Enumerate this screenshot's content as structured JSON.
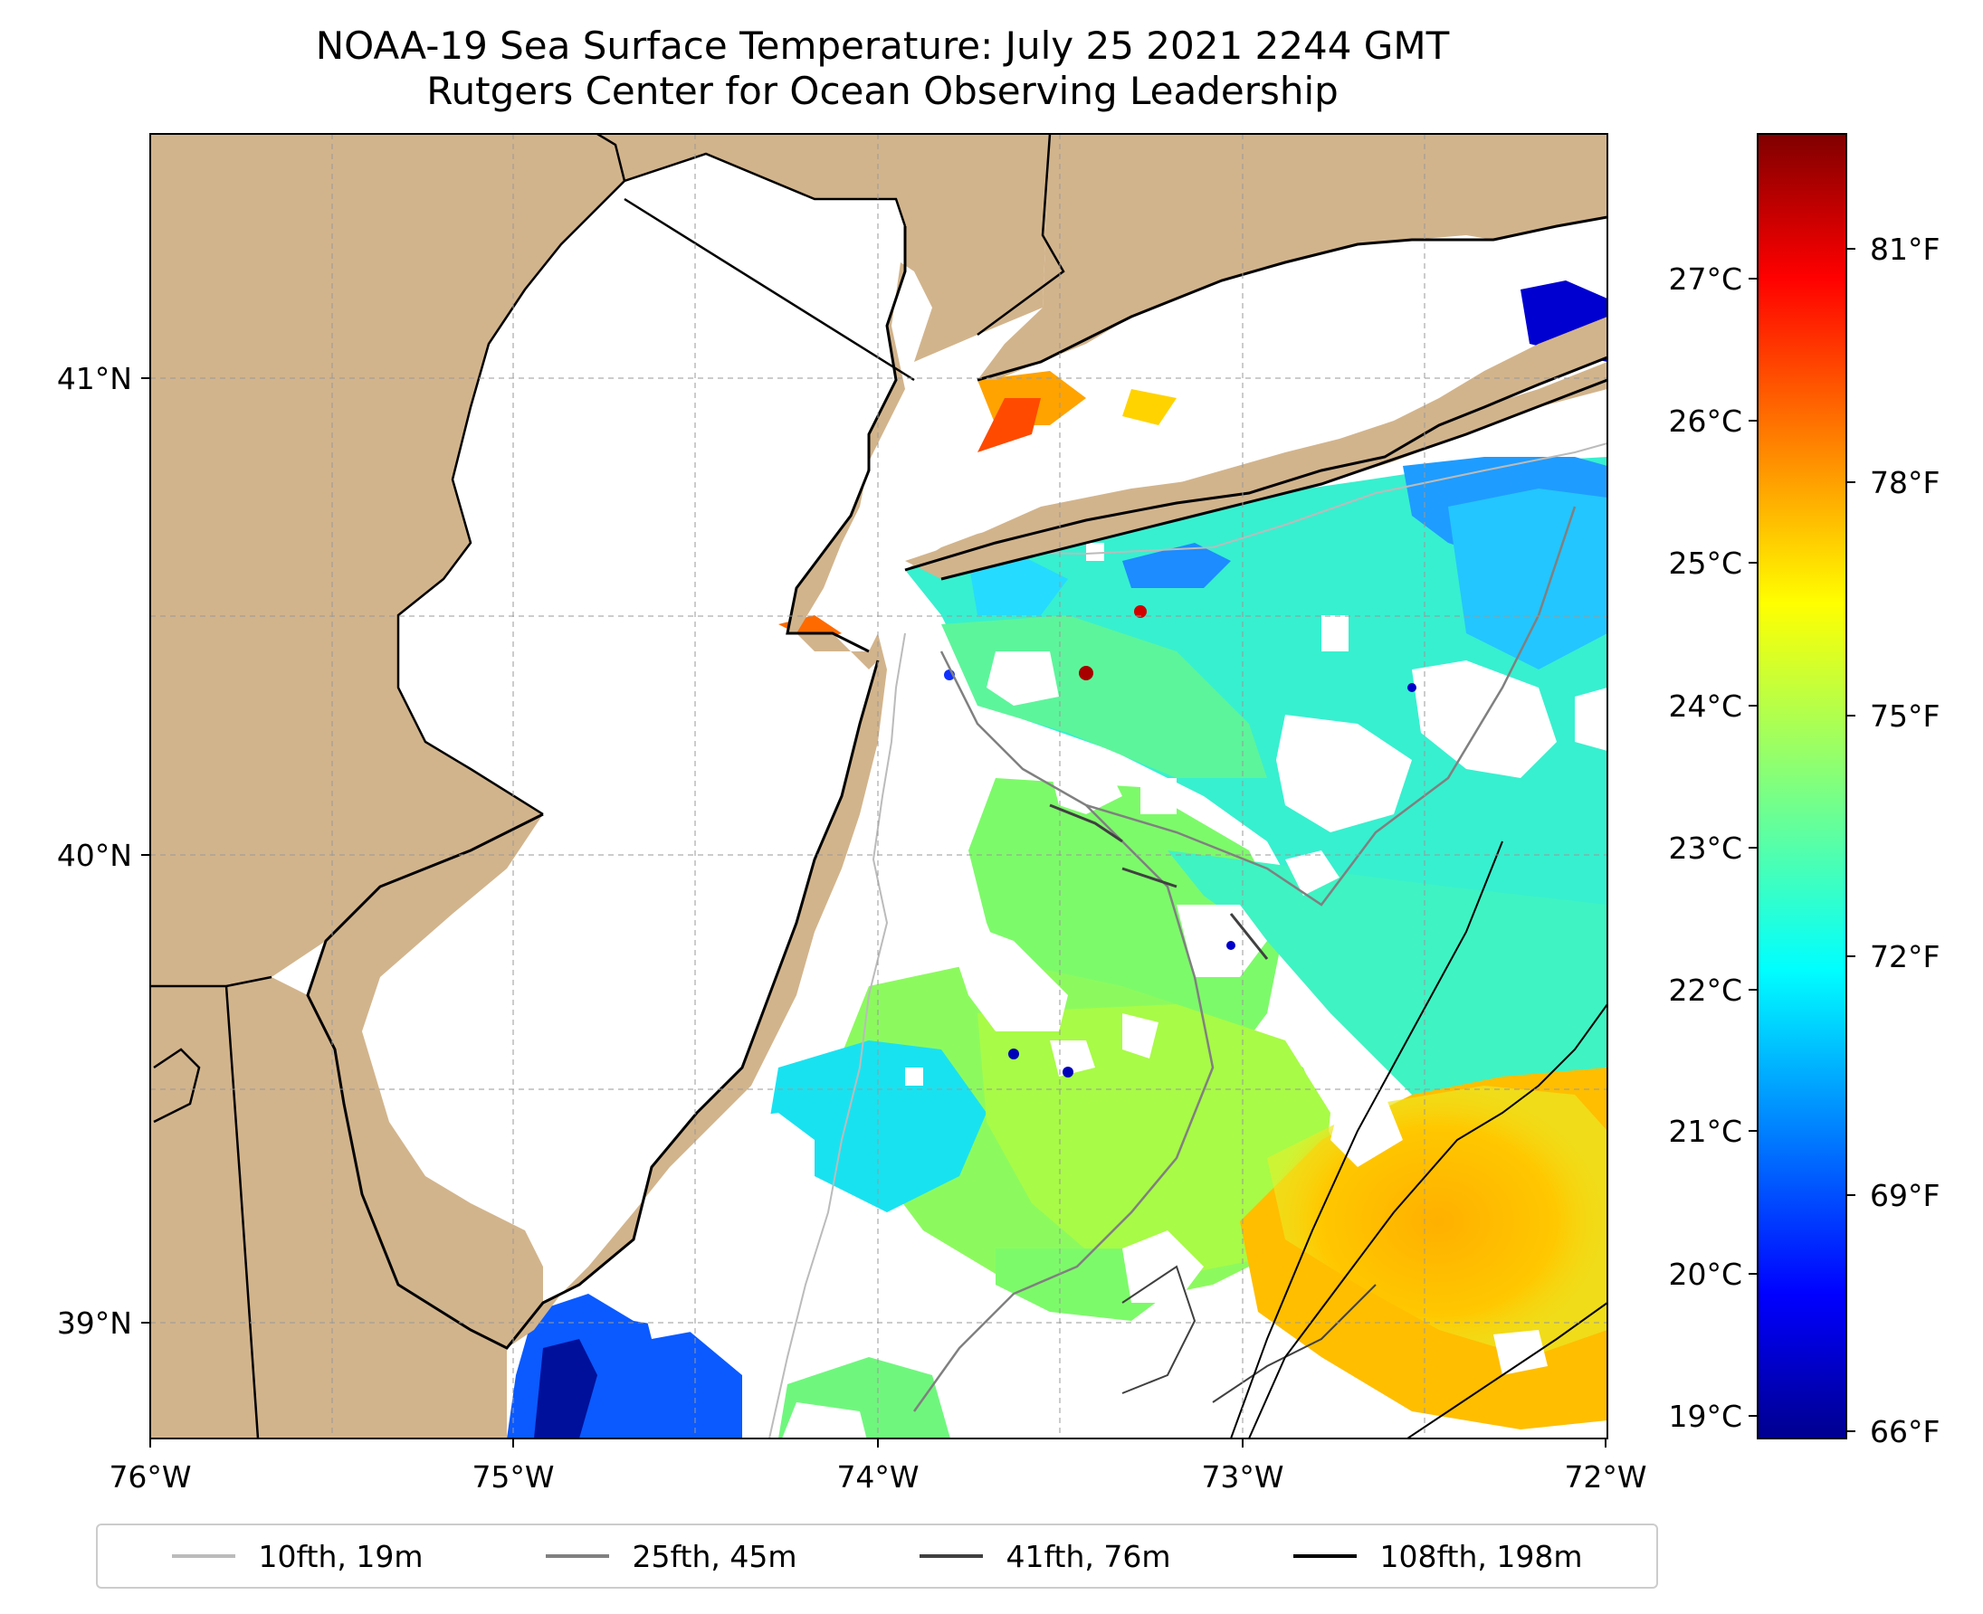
{
  "title": {
    "line1": "NOAA-19 Sea Surface Temperature: July 25 2021 2244 GMT",
    "line2": "Rutgers Center for Ocean Observing Leadership"
  },
  "map": {
    "x_axis": {
      "ticks": [
        "76°W",
        "75°W",
        "74°W",
        "73°W",
        "72°W"
      ],
      "range": [
        -76,
        -72
      ]
    },
    "y_axis": {
      "ticks": [
        "41°N",
        "40°N",
        "39°N"
      ],
      "range": [
        38.75,
        41.5
      ]
    },
    "grid": true,
    "colors": {
      "land": "#d2b48c",
      "coastline": "#000000",
      "no_data": "#ffffff"
    }
  },
  "colorbar": {
    "celsius_ticks": [
      "27°C",
      "26°C",
      "25°C",
      "24°C",
      "23°C",
      "22°C",
      "21°C",
      "20°C",
      "19°C"
    ],
    "fahrenheit_ticks": [
      "81°F",
      "78°F",
      "75°F",
      "72°F",
      "69°F",
      "66°F"
    ],
    "range_c": [
      18.9,
      28.0
    ],
    "colormap": "jet"
  },
  "legend": {
    "placement": "bottom",
    "items": [
      {
        "label": "10fth, 19m",
        "color": "#bbbbbb"
      },
      {
        "label": "25fth, 45m",
        "color": "#808080"
      },
      {
        "label": "41fth, 76m",
        "color": "#404040"
      },
      {
        "label": "108fth, 198m",
        "color": "#000000"
      }
    ]
  }
}
